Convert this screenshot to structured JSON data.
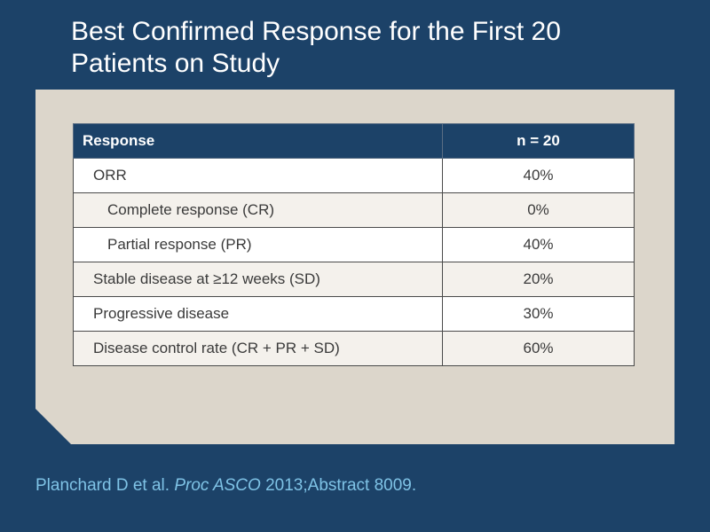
{
  "title": {
    "line1": "Best Confirmed Response for the First 20",
    "line2": "Patients on Study"
  },
  "table": {
    "headers": [
      "Response",
      "n = 20"
    ],
    "rows": [
      {
        "label": "ORR",
        "value": "40%",
        "indent": 1
      },
      {
        "label": "Complete response (CR)",
        "value": "0%",
        "indent": 2
      },
      {
        "label": "Partial response (PR)",
        "value": "40%",
        "indent": 2
      },
      {
        "label": "Stable disease at ≥12 weeks (SD)",
        "value": "20%",
        "indent": 1
      },
      {
        "label": "Progressive disease",
        "value": "30%",
        "indent": 1
      },
      {
        "label": "Disease control rate (CR + PR + SD)",
        "value": "60%",
        "indent": 1
      }
    ]
  },
  "citation": {
    "authors": "Planchard D et al.",
    "journal": "Proc ASCO",
    "details": "2013;Abstract 8009."
  },
  "colors": {
    "background": "#1c4268",
    "panel": "#dcd6cb",
    "citation": "#7fc3e6"
  }
}
